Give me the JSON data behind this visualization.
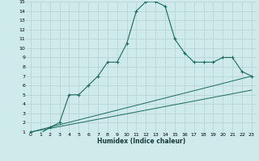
{
  "title": "",
  "xlabel": "Humidex (Indice chaleur)",
  "bg_color": "#ceeaea",
  "grid_color": "#b8d4d4",
  "line_color": "#1a6b5e",
  "xlim": [
    -0.5,
    23.5
  ],
  "ylim": [
    1,
    15
  ],
  "xticks": [
    0,
    1,
    2,
    3,
    4,
    5,
    6,
    7,
    8,
    9,
    10,
    11,
    12,
    13,
    14,
    15,
    16,
    17,
    18,
    19,
    20,
    21,
    22,
    23
  ],
  "yticks": [
    1,
    2,
    3,
    4,
    5,
    6,
    7,
    8,
    9,
    10,
    11,
    12,
    13,
    14,
    15
  ],
  "curve_x": [
    0,
    1,
    2,
    3,
    4,
    5,
    6,
    7,
    8,
    9,
    10,
    11,
    12,
    13,
    14,
    15,
    16,
    17,
    18,
    19,
    20,
    21,
    22,
    23
  ],
  "curve_y": [
    1.0,
    0.85,
    1.5,
    2.0,
    5.0,
    5.0,
    6.0,
    7.0,
    8.5,
    8.5,
    10.5,
    14.0,
    15.0,
    15.0,
    14.5,
    11.0,
    9.5,
    8.5,
    8.5,
    8.5,
    9.0,
    9.0,
    7.5,
    7.0
  ],
  "line1_x": [
    0,
    23
  ],
  "line1_y": [
    1.0,
    7.0
  ],
  "line2_x": [
    0,
    23
  ],
  "line2_y": [
    1.0,
    5.5
  ]
}
